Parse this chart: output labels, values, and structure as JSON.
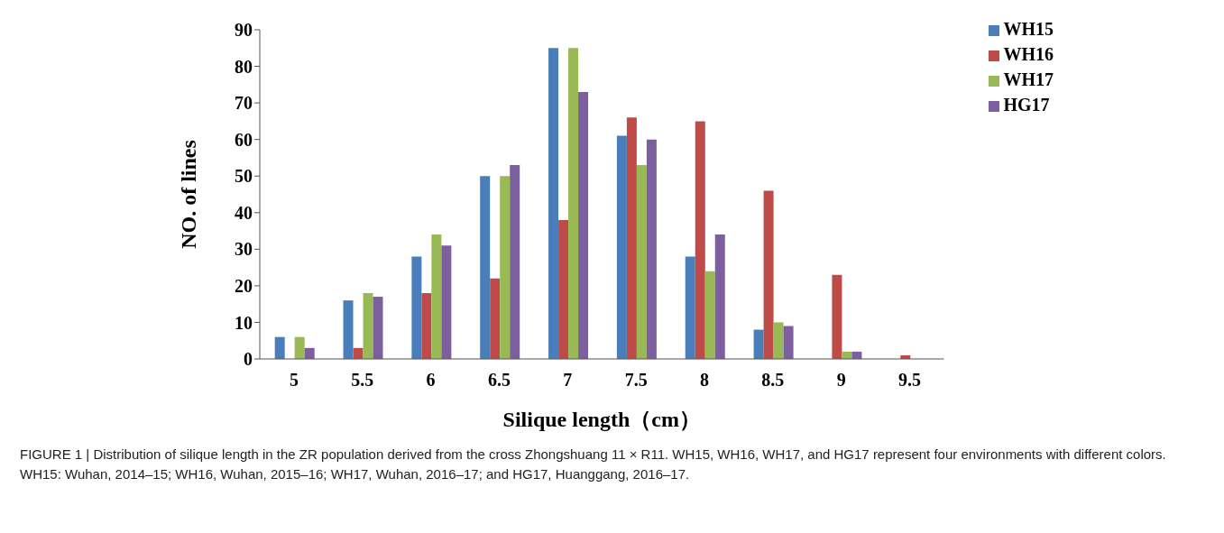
{
  "chart_data": {
    "type": "bar",
    "categories": [
      "5",
      "5.5",
      "6",
      "6.5",
      "7",
      "7.5",
      "8",
      "8.5",
      "9",
      "9.5"
    ],
    "series": [
      {
        "name": "WH15",
        "color": "#4a7ebb",
        "values": [
          6,
          16,
          28,
          50,
          85,
          61,
          28,
          8,
          0,
          0
        ]
      },
      {
        "name": "WH16",
        "color": "#be4b48",
        "values": [
          0,
          3,
          18,
          22,
          38,
          66,
          65,
          46,
          23,
          1
        ]
      },
      {
        "name": "WH17",
        "color": "#98b954",
        "values": [
          6,
          18,
          34,
          50,
          85,
          53,
          24,
          10,
          2,
          0
        ]
      },
      {
        "name": "HG17",
        "color": "#7d5fa0",
        "values": [
          3,
          17,
          31,
          53,
          73,
          60,
          34,
          9,
          2,
          0
        ]
      }
    ],
    "ylim": [
      0,
      90
    ],
    "yticks": [
      0,
      10,
      20,
      30,
      40,
      50,
      60,
      70,
      80,
      90
    ],
    "xlabel": "Silique length（cm）",
    "ylabel": "NO. of lines",
    "grid": false,
    "legend": "top right",
    "annotations": [
      "FIGURE 1 | Distribution of silique length in the ZR population derived from the cross Zhongshuang 11 × R11. WH15, WH16, WH17, and HG17 represent four environments with different colors. WH15: Wuhan, 2014–15; WH16, Wuhan, 2015–16; WH17, Wuhan, 2016–17; and HG17, Huanggang, 2016–17."
    ]
  }
}
